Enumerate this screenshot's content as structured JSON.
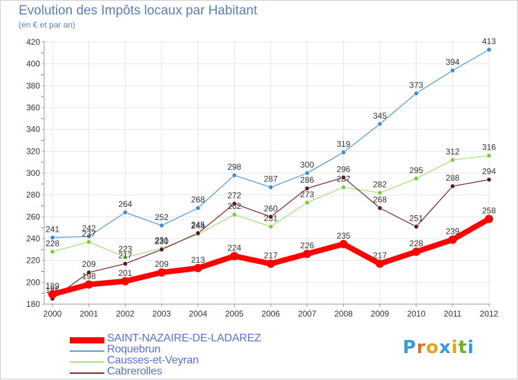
{
  "title": "Evolution des Impôts locaux par Habitant",
  "subtitle": "(en € et par an)",
  "logo": {
    "letters": [
      "P",
      "r",
      "o",
      "x",
      "i",
      "t",
      "i"
    ],
    "colors": [
      "#3a9ad9",
      "#e07020",
      "#e8a020",
      "#3a9ad9",
      "#e8a020",
      "#70b030",
      "#3a9ad9"
    ]
  },
  "chart_data": {
    "type": "line",
    "title": "Evolution des Impôts locaux par Habitant",
    "subtitle": "(en € et par an)",
    "categories": [
      "2000",
      "2001",
      "2002",
      "2003",
      "2004",
      "2005",
      "2006",
      "2007",
      "2008",
      "2009",
      "2010",
      "2011",
      "2012"
    ],
    "ylim": [
      180,
      420
    ],
    "yticks": [
      180,
      200,
      220,
      240,
      260,
      280,
      300,
      320,
      340,
      360,
      380,
      400,
      420
    ],
    "grid": true,
    "legend": "bottom-left",
    "series": [
      {
        "name": "Roquebrun",
        "color": "#5b9bd5",
        "marker": "#3a8fd0",
        "values": [
          241,
          242,
          264,
          252,
          268,
          298,
          287,
          300,
          319,
          345,
          373,
          394,
          413
        ],
        "labels": [
          "241",
          "242",
          "264",
          "252",
          "268",
          "298",
          "287",
          "300",
          "319",
          "345",
          "373",
          "394",
          "413"
        ]
      },
      {
        "name": "Causses-et-Veyran",
        "color": "#a8e080",
        "marker": "#7ccc40",
        "values": [
          228,
          237,
          223,
          231,
          244,
          262,
          251,
          273,
          287,
          282,
          295,
          312,
          316
        ],
        "labels": [
          "228",
          "237",
          "223",
          "231",
          "244",
          "262",
          "251",
          "273",
          "287",
          "282",
          "295",
          "312",
          "316"
        ]
      },
      {
        "name": "Cabrerolles",
        "color": "#7a3030",
        "marker": "#5a1818",
        "values": [
          185,
          209,
          217,
          230,
          245,
          272,
          260,
          286,
          296,
          268,
          251,
          288,
          294
        ],
        "labels": [
          "185",
          "209",
          "217",
          "230",
          "245",
          "272",
          "260",
          "286",
          "296",
          "268",
          "251",
          "288",
          "294"
        ]
      },
      {
        "name": "SAINT-NAZAIRE-DE-LADAREZ",
        "color": "#ff0000",
        "marker": "#ff0000",
        "values": [
          189,
          198,
          201,
          209,
          213,
          224,
          217,
          226,
          235,
          217,
          228,
          239,
          258
        ],
        "labels": [
          "189",
          "198",
          "201",
          "209",
          "213",
          "224",
          "217",
          "226",
          "235",
          "217",
          "228",
          "239",
          "258"
        ]
      }
    ],
    "legend_order": [
      "SAINT-NAZAIRE-DE-LADAREZ",
      "Roquebrun",
      "Causses-et-Veyran",
      "Cabrerolles"
    ]
  }
}
